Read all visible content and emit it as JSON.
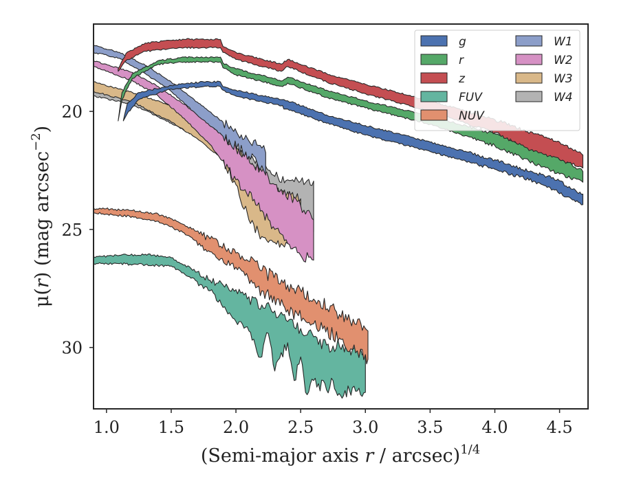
{
  "chart_data": {
    "type": "area",
    "xlabel": "(Semi-major axis r / arcsec)",
    "xlabel_parts": {
      "pre": "(Semi-major axis ",
      "var": "r",
      "post": " / arcsec)",
      "sup": "1/4"
    },
    "ylabel": "μ(r) (mag arcsec−2)",
    "ylabel_parts": {
      "mu": "μ(",
      "var": "r",
      "mid": ") (mag arcsec",
      "sup": "−2",
      "end": ")"
    },
    "xlim": [
      0.9,
      4.72
    ],
    "ylim": [
      32.6,
      16.3
    ],
    "y_inverted": true,
    "xticks": [
      1.0,
      1.5,
      2.0,
      2.5,
      3.0,
      3.5,
      4.0,
      4.5
    ],
    "xtick_labels": [
      "1.0",
      "1.5",
      "2.0",
      "2.5",
      "3.0",
      "3.5",
      "4.0",
      "4.5"
    ],
    "yticks": [
      20,
      25,
      30
    ],
    "ytick_labels": [
      "20",
      "25",
      "30"
    ],
    "grid": false,
    "legend": {
      "position": "top-right",
      "columns": 2
    },
    "series": [
      {
        "name": "g",
        "color": "#4c72b0",
        "upper": [
          [
            1.13,
            20.4
          ],
          [
            1.16,
            19.7
          ],
          [
            1.25,
            19.2
          ],
          [
            1.5,
            18.9
          ],
          [
            1.75,
            18.75
          ],
          [
            1.88,
            18.75
          ],
          [
            1.9,
            18.95
          ],
          [
            2.0,
            19.1
          ],
          [
            2.3,
            19.45
          ],
          [
            2.36,
            19.5
          ],
          [
            2.37,
            19.5
          ],
          [
            2.4,
            19.55
          ],
          [
            2.7,
            20.15
          ],
          [
            3.0,
            20.6
          ],
          [
            3.5,
            21.3
          ],
          [
            4.0,
            22.05
          ],
          [
            4.3,
            22.6
          ],
          [
            4.45,
            22.8
          ],
          [
            4.6,
            23.3
          ],
          [
            4.68,
            23.5
          ]
        ],
        "lower": [
          [
            4.68,
            23.95
          ],
          [
            4.6,
            23.75
          ],
          [
            4.45,
            23.3
          ],
          [
            4.3,
            22.95
          ],
          [
            4.0,
            22.45
          ],
          [
            3.5,
            21.7
          ],
          [
            3.0,
            21.0
          ],
          [
            2.7,
            20.5
          ],
          [
            2.4,
            19.9
          ],
          [
            2.37,
            19.9
          ],
          [
            2.36,
            19.75
          ],
          [
            2.3,
            19.7
          ],
          [
            2.0,
            19.35
          ],
          [
            1.9,
            19.1
          ],
          [
            1.88,
            18.95
          ],
          [
            1.75,
            18.95
          ],
          [
            1.5,
            19.05
          ],
          [
            1.25,
            19.5
          ],
          [
            1.16,
            20.1
          ]
        ]
      },
      {
        "name": "r",
        "color": "#55a868",
        "upper": [
          [
            1.09,
            20.4
          ],
          [
            1.12,
            19.2
          ],
          [
            1.2,
            18.4
          ],
          [
            1.4,
            17.85
          ],
          [
            1.6,
            17.7
          ],
          [
            1.88,
            17.7
          ],
          [
            1.9,
            17.95
          ],
          [
            2.0,
            18.2
          ],
          [
            2.36,
            18.7
          ],
          [
            2.4,
            18.55
          ],
          [
            2.7,
            19.1
          ],
          [
            3.0,
            19.55
          ],
          [
            3.5,
            20.2
          ],
          [
            4.0,
            20.95
          ],
          [
            4.3,
            21.55
          ],
          [
            4.5,
            21.9
          ],
          [
            4.68,
            22.55
          ]
        ],
        "lower": [
          [
            4.68,
            23.0
          ],
          [
            4.5,
            22.65
          ],
          [
            4.3,
            22.2
          ],
          [
            4.0,
            21.45
          ],
          [
            3.5,
            20.55
          ],
          [
            3.0,
            19.85
          ],
          [
            2.7,
            19.4
          ],
          [
            2.4,
            18.8
          ],
          [
            2.36,
            18.95
          ],
          [
            2.0,
            18.45
          ],
          [
            1.9,
            18.15
          ],
          [
            1.88,
            17.9
          ],
          [
            1.6,
            17.9
          ],
          [
            1.4,
            18.0
          ],
          [
            1.2,
            18.6
          ],
          [
            1.12,
            19.5
          ]
        ]
      },
      {
        "name": "z",
        "color": "#c44e52",
        "upper": [
          [
            1.09,
            18.2
          ],
          [
            1.15,
            17.55
          ],
          [
            1.3,
            17.1
          ],
          [
            1.6,
            16.95
          ],
          [
            1.88,
            16.95
          ],
          [
            1.9,
            17.25
          ],
          [
            2.0,
            17.5
          ],
          [
            2.35,
            18.0
          ],
          [
            2.4,
            17.8
          ],
          [
            2.7,
            18.4
          ],
          [
            3.0,
            18.85
          ],
          [
            3.5,
            19.55
          ],
          [
            4.0,
            20.35
          ],
          [
            4.3,
            20.95
          ],
          [
            4.5,
            21.3
          ],
          [
            4.68,
            21.85
          ]
        ],
        "lower": [
          [
            4.68,
            22.4
          ],
          [
            4.5,
            22.05
          ],
          [
            4.3,
            21.7
          ],
          [
            4.0,
            20.9
          ],
          [
            3.5,
            20.0
          ],
          [
            3.0,
            19.25
          ],
          [
            2.7,
            18.75
          ],
          [
            2.4,
            18.1
          ],
          [
            2.35,
            18.3
          ],
          [
            2.0,
            17.8
          ],
          [
            1.9,
            17.5
          ],
          [
            1.88,
            17.3
          ],
          [
            1.6,
            17.3
          ],
          [
            1.3,
            17.45
          ],
          [
            1.15,
            17.85
          ],
          [
            1.09,
            18.3
          ]
        ]
      },
      {
        "name": "FUV",
        "color": "#64b5a0",
        "upper": [
          [
            0.9,
            26.15
          ],
          [
            1.1,
            26.1
          ],
          [
            1.3,
            26.05
          ],
          [
            1.5,
            26.2
          ],
          [
            1.7,
            26.8
          ],
          [
            1.8,
            27.15
          ],
          [
            1.9,
            27.35
          ],
          [
            2.0,
            27.55
          ],
          [
            2.1,
            27.85
          ],
          [
            2.2,
            28.2
          ],
          [
            2.3,
            28.45
          ],
          [
            2.4,
            28.9
          ],
          [
            2.5,
            29.2
          ],
          [
            2.6,
            29.55
          ],
          [
            2.7,
            29.9
          ],
          [
            2.8,
            29.95
          ],
          [
            2.9,
            30.1
          ],
          [
            3.0,
            30.2
          ]
        ],
        "lower": [
          [
            3.0,
            31.9
          ],
          [
            2.9,
            31.7
          ],
          [
            2.82,
            32.15
          ],
          [
            2.75,
            31.4
          ],
          [
            2.7,
            31.8
          ],
          [
            2.6,
            31.4
          ],
          [
            2.55,
            32.0
          ],
          [
            2.5,
            30.4
          ],
          [
            2.45,
            31.4
          ],
          [
            2.4,
            29.8
          ],
          [
            2.3,
            31.0
          ],
          [
            2.25,
            29.4
          ],
          [
            2.2,
            30.4
          ],
          [
            2.1,
            29.3
          ],
          [
            2.0,
            28.9
          ],
          [
            1.9,
            28.3
          ],
          [
            1.8,
            27.6
          ],
          [
            1.7,
            27.2
          ],
          [
            1.5,
            26.55
          ],
          [
            1.3,
            26.5
          ],
          [
            1.1,
            26.45
          ],
          [
            0.9,
            26.45
          ]
        ]
      },
      {
        "name": "NUV",
        "color": "#e1906f",
        "upper": [
          [
            0.9,
            24.1
          ],
          [
            1.2,
            24.2
          ],
          [
            1.4,
            24.35
          ],
          [
            1.6,
            24.8
          ],
          [
            1.8,
            25.4
          ],
          [
            2.0,
            26.0
          ],
          [
            2.2,
            26.75
          ],
          [
            2.4,
            27.35
          ],
          [
            2.6,
            27.95
          ],
          [
            2.8,
            28.6
          ],
          [
            3.0,
            29.2
          ],
          [
            3.02,
            29.3
          ]
        ],
        "lower": [
          [
            3.02,
            30.5
          ],
          [
            3.0,
            30.3
          ],
          [
            2.9,
            30.1
          ],
          [
            2.8,
            29.6
          ],
          [
            2.6,
            29.0
          ],
          [
            2.4,
            28.4
          ],
          [
            2.2,
            27.6
          ],
          [
            2.0,
            26.6
          ],
          [
            1.8,
            25.95
          ],
          [
            1.6,
            25.15
          ],
          [
            1.4,
            24.65
          ],
          [
            1.2,
            24.45
          ],
          [
            0.9,
            24.3
          ]
        ]
      },
      {
        "name": "W1",
        "color": "#8c9ec9",
        "upper": [
          [
            0.9,
            17.2
          ],
          [
            1.1,
            17.5
          ],
          [
            1.3,
            18.05
          ],
          [
            1.5,
            18.75
          ],
          [
            1.7,
            19.6
          ],
          [
            1.9,
            20.45
          ],
          [
            2.1,
            21.25
          ],
          [
            2.2,
            21.55
          ],
          [
            2.23,
            21.75
          ]
        ],
        "lower": [
          [
            2.23,
            22.7
          ],
          [
            2.2,
            22.3
          ],
          [
            2.1,
            21.9
          ],
          [
            1.9,
            21.05
          ],
          [
            1.7,
            20.15
          ],
          [
            1.5,
            19.15
          ],
          [
            1.3,
            18.4
          ],
          [
            1.1,
            17.75
          ],
          [
            0.9,
            17.5
          ]
        ]
      },
      {
        "name": "W2",
        "color": "#d691c4",
        "upper": [
          [
            0.9,
            17.85
          ],
          [
            1.2,
            18.35
          ],
          [
            1.4,
            18.95
          ],
          [
            1.6,
            19.7
          ],
          [
            1.8,
            20.55
          ],
          [
            2.0,
            21.55
          ],
          [
            2.2,
            22.55
          ],
          [
            2.35,
            23.3
          ],
          [
            2.5,
            24.0
          ],
          [
            2.6,
            24.6
          ]
        ],
        "lower": [
          [
            2.6,
            26.3
          ],
          [
            2.5,
            26.1
          ],
          [
            2.4,
            25.6
          ],
          [
            2.3,
            25.0
          ],
          [
            2.2,
            24.2
          ],
          [
            2.0,
            22.9
          ],
          [
            1.8,
            21.4
          ],
          [
            1.6,
            20.3
          ],
          [
            1.4,
            19.35
          ],
          [
            1.2,
            18.7
          ],
          [
            0.9,
            18.1
          ]
        ]
      },
      {
        "name": "W3",
        "color": "#d9b889",
        "upper": [
          [
            0.9,
            18.75
          ],
          [
            1.2,
            19.2
          ],
          [
            1.5,
            19.75
          ],
          [
            1.7,
            20.4
          ],
          [
            1.9,
            21.15
          ],
          [
            2.0,
            21.6
          ],
          [
            2.1,
            22.15
          ],
          [
            2.2,
            22.7
          ],
          [
            2.3,
            23.35
          ],
          [
            2.4,
            23.4
          ],
          [
            2.5,
            23.7
          ]
        ],
        "lower": [
          [
            2.5,
            25.65
          ],
          [
            2.4,
            25.6
          ],
          [
            2.35,
            25.6
          ],
          [
            2.3,
            25.55
          ],
          [
            2.25,
            25.55
          ],
          [
            2.2,
            25.3
          ],
          [
            2.1,
            24.6
          ],
          [
            2.0,
            23.1
          ],
          [
            1.9,
            22.05
          ],
          [
            1.7,
            21.15
          ],
          [
            1.5,
            20.45
          ],
          [
            1.2,
            19.6
          ],
          [
            0.9,
            19.15
          ]
        ]
      },
      {
        "name": "W4",
        "color": "#b3b3b3",
        "upper": [
          [
            0.9,
            19.1
          ],
          [
            1.2,
            19.5
          ],
          [
            1.5,
            20.0
          ],
          [
            1.7,
            20.55
          ],
          [
            1.9,
            21.1
          ],
          [
            2.0,
            21.5
          ],
          [
            2.1,
            21.85
          ],
          [
            2.2,
            22.3
          ],
          [
            2.3,
            22.75
          ],
          [
            2.4,
            22.9
          ],
          [
            2.5,
            22.95
          ],
          [
            2.6,
            22.95
          ]
        ],
        "lower": [
          [
            2.6,
            25.1
          ],
          [
            2.5,
            24.8
          ],
          [
            2.4,
            24.7
          ],
          [
            2.3,
            24.4
          ],
          [
            2.2,
            24.1
          ],
          [
            2.1,
            23.4
          ],
          [
            2.0,
            22.4
          ],
          [
            1.9,
            21.7
          ],
          [
            1.7,
            21.1
          ],
          [
            1.5,
            20.5
          ],
          [
            1.2,
            19.7
          ],
          [
            0.9,
            19.35
          ]
        ]
      }
    ],
    "draw_order": [
      "FUV",
      "NUV",
      "W4",
      "W3",
      "W2",
      "W1",
      "g",
      "r",
      "z"
    ]
  }
}
